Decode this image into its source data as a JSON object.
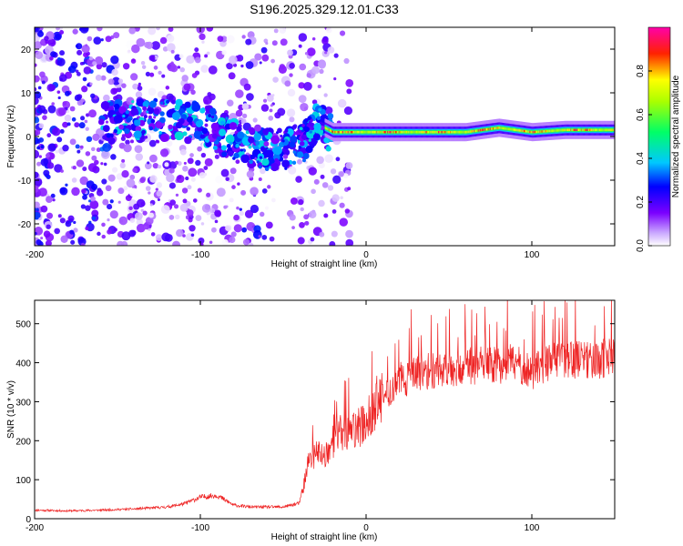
{
  "title": "S196.2025.329.12.01.C33",
  "chart_data": [
    {
      "type": "heatmap",
      "xlabel": "Height of straight line (km)",
      "ylabel": "Frequency (Hz)",
      "xlim": [
        -200,
        150
      ],
      "ylim": [
        -25,
        25
      ],
      "xticks": [
        -200,
        -100,
        0,
        100
      ],
      "yticks": [
        20,
        10,
        0,
        -10,
        -20
      ],
      "xtick_labels": [
        "-200",
        "-100",
        "0",
        "100"
      ],
      "ytick_labels": [
        "20",
        "10",
        "0",
        "-10",
        "-20"
      ],
      "colorbar": {
        "label": "Normalized spectral amplitude",
        "range": [
          0,
          1
        ],
        "ticks": [
          0.0,
          0.2,
          0.4,
          0.6,
          0.8
        ],
        "tick_labels": [
          "0.0",
          "0.2",
          "0.4",
          "0.6",
          "0.8"
        ],
        "colors": [
          "#ffffff",
          "#7b00ff",
          "#0000ff",
          "#00e5ff",
          "#00ff00",
          "#ffff00",
          "#ff0000",
          "#ff00aa"
        ]
      },
      "ridge": {
        "x": [
          -160,
          -140,
          -120,
          -100,
          -80,
          -60,
          -40,
          -30,
          -20,
          0,
          20,
          40,
          60,
          80,
          100,
          120,
          150
        ],
        "freq": [
          3,
          3.5,
          4,
          3,
          -1,
          -3,
          -3,
          3,
          1,
          1,
          1,
          1,
          1,
          2,
          1,
          1.5,
          1.5
        ]
      }
    },
    {
      "type": "line",
      "xlabel": "Height of straight line (km)",
      "ylabel": "SNR (10 * v/v)",
      "xlim": [
        -200,
        150
      ],
      "ylim": [
        0,
        560
      ],
      "xticks": [
        -200,
        -100,
        0,
        100
      ],
      "yticks": [
        0,
        100,
        200,
        300,
        400,
        500
      ],
      "xtick_labels": [
        "-200",
        "-100",
        "0",
        "100"
      ],
      "ytick_labels": [
        "0",
        "100",
        "200",
        "300",
        "400",
        "500"
      ],
      "color": "#ee2222",
      "series": [
        {
          "name": "SNR",
          "x": [
            -200,
            -180,
            -160,
            -140,
            -120,
            -110,
            -100,
            -90,
            -80,
            -70,
            -60,
            -50,
            -40,
            -35,
            -30,
            -25,
            -20,
            -15,
            -10,
            -5,
            0,
            10,
            20,
            30,
            40,
            60,
            80,
            90,
            100,
            110,
            120,
            130,
            150
          ],
          "values": [
            22,
            20,
            22,
            25,
            30,
            38,
            55,
            60,
            35,
            30,
            30,
            30,
            40,
            140,
            170,
            160,
            200,
            220,
            220,
            230,
            250,
            310,
            350,
            370,
            380,
            390,
            395,
            400,
            375,
            400,
            410,
            410,
            410
          ]
        }
      ]
    }
  ]
}
